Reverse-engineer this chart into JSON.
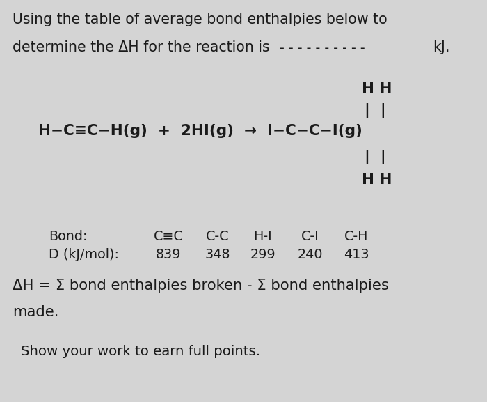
{
  "background_color": "#d4d4d4",
  "text_color": "#1a1a1a",
  "line1": "Using the table of average bond enthalpies below to",
  "line2_part1": "determine the ΔH for the reaction is",
  "line2_dashes": "- - - - - - - - - -",
  "line2_kj": "kJ.",
  "rxn_eq": "H−C≡C−H(g)  +  2HI(g)  →  I−C−C−I(g)",
  "hh_above": "H H",
  "pipes_above": "|  |",
  "pipes_below": "|  |",
  "hh_below": "H H",
  "bond_label": "Bond:",
  "d_label": "D (kJ/mol):",
  "bonds": [
    "C≡C",
    "C-C",
    "H-I",
    "C-I",
    "C-H"
  ],
  "d_values": [
    "839",
    "348",
    "299",
    "240",
    "413"
  ],
  "formula1": "ΔH = Σ bond enthalpies broken - Σ bond enthalpies",
  "formula2": "made.",
  "footer": "Show your work to earn full points.",
  "fs_body": 14.8,
  "fs_rxn": 15.5,
  "fs_tbl": 13.8,
  "fs_formula": 15.2,
  "fs_footer": 14.2
}
